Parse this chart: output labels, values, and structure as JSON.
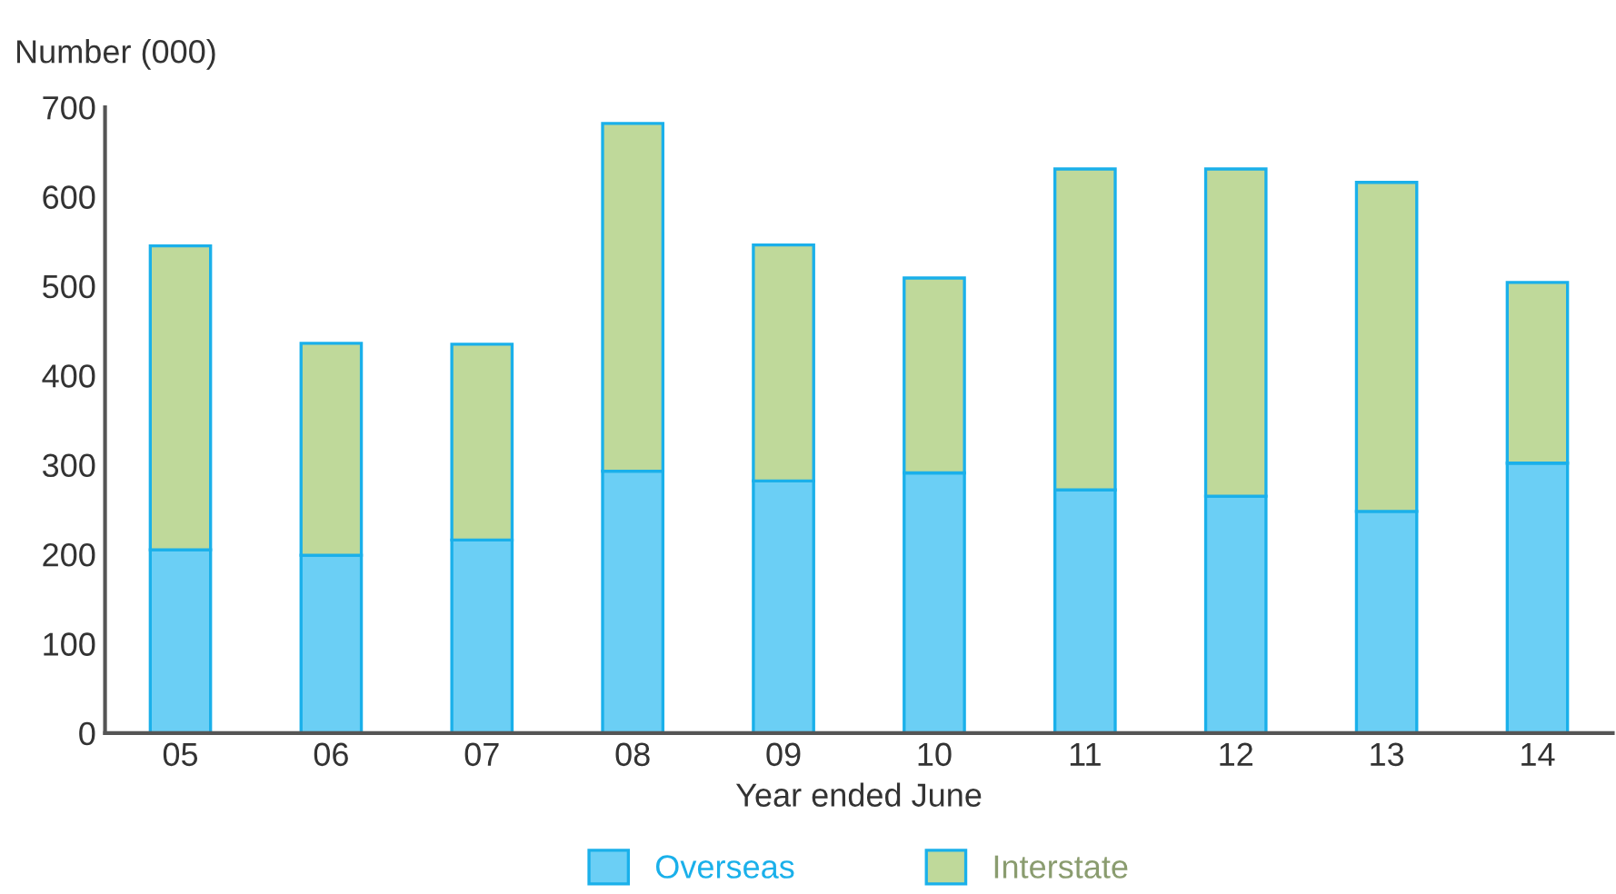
{
  "chart_data": {
    "type": "bar",
    "stacked": true,
    "ylabel": "Number (000)",
    "xlabel": "Year ended June",
    "categories": [
      "05",
      "06",
      "07",
      "08",
      "09",
      "10",
      "11",
      "12",
      "13",
      "14"
    ],
    "series": [
      {
        "name": "Overseas",
        "color": "#6bcff5",
        "values": [
          205,
          199,
          216,
          293,
          282,
          291,
          272,
          265,
          248,
          302
        ]
      },
      {
        "name": "Interstate",
        "color": "#bfd99a",
        "values": [
          340,
          237,
          219,
          389,
          264,
          218,
          359,
          366,
          368,
          202
        ]
      }
    ],
    "ylim": [
      0,
      700
    ],
    "yticks": [
      0,
      100,
      200,
      300,
      400,
      500,
      600,
      700
    ],
    "grid": false,
    "legend": "bottom"
  }
}
